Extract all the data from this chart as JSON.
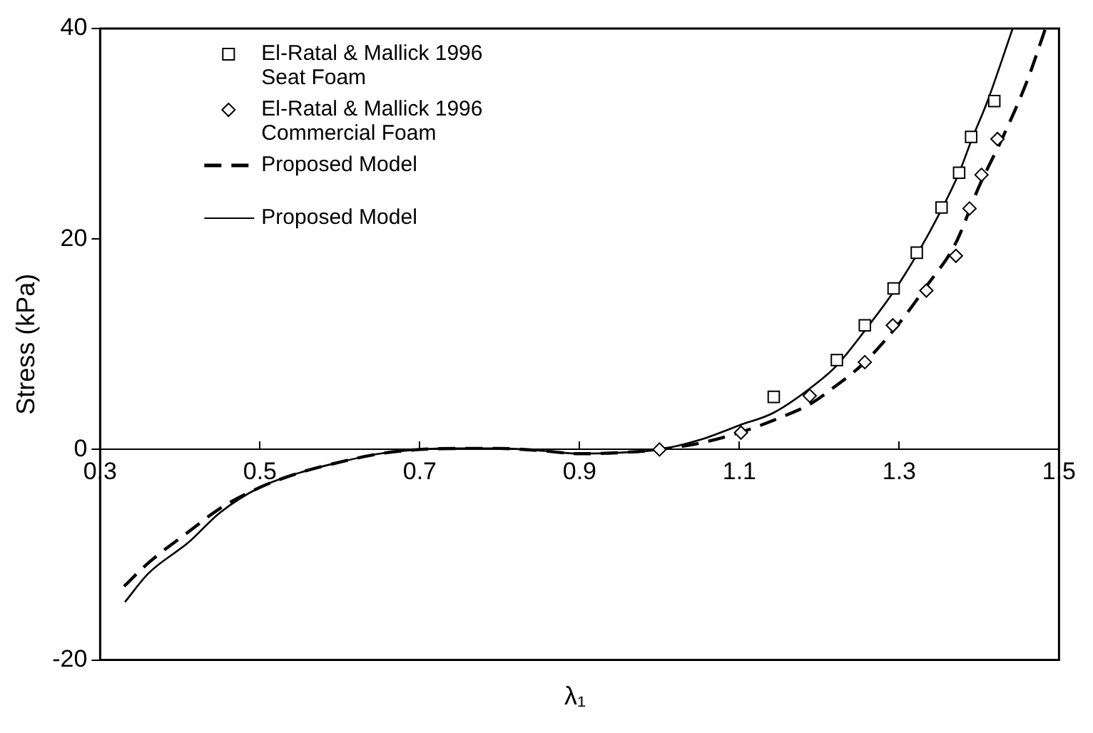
{
  "chart_data": {
    "type": "line",
    "xlabel": "λ₁",
    "ylabel": "Stress (kPa)",
    "xlim": [
      0.3,
      1.5
    ],
    "xticks": [
      0.3,
      0.5,
      0.7,
      0.9,
      1.1,
      1.3,
      1.5
    ],
    "ylim": [
      -20,
      40
    ],
    "yticks": [
      -20,
      0,
      20,
      40
    ],
    "grid": false,
    "legend": "top left",
    "series": [
      {
        "name": "El-Ratal & Mallick 1996 Seat Foam",
        "type": "scatter",
        "marker": "square",
        "color": "#000000",
        "x": [
          1.143,
          1.222,
          1.257,
          1.293,
          1.322,
          1.353,
          1.375,
          1.39,
          1.419
        ],
        "values": [
          5.0,
          8.5,
          11.8,
          15.3,
          18.7,
          23.0,
          26.3,
          29.7,
          33.1
        ]
      },
      {
        "name": "El-Ratal & Mallick 1996 Commercial Foam",
        "type": "scatter",
        "marker": "diamond",
        "color": "#000000",
        "x": [
          1.0,
          1.102,
          1.188,
          1.257,
          1.292,
          1.334,
          1.371,
          1.388,
          1.403,
          1.423
        ],
        "values": [
          0,
          1.6,
          5.1,
          8.3,
          11.8,
          15.1,
          18.4,
          22.9,
          26.1,
          29.5
        ]
      },
      {
        "name": "Proposed Model",
        "line_style": "dashed",
        "color": "#000000",
        "x": [
          0.33,
          0.36,
          0.411,
          0.45,
          0.5,
          0.55,
          0.6,
          0.65,
          0.7,
          0.75,
          0.8,
          0.85,
          0.9,
          0.95,
          1.0,
          1.05,
          1.1,
          1.15,
          1.188,
          1.22,
          1.257,
          1.3,
          1.334,
          1.37,
          1.4,
          1.431,
          1.46,
          1.483
        ],
        "values": [
          -13.0,
          -10.8,
          -7.8,
          -5.6,
          -3.6,
          -2.2,
          -1.2,
          -0.4,
          0,
          0.1,
          0.1,
          -0.1,
          -0.4,
          -0.3,
          0,
          0.6,
          1.6,
          3.0,
          4.3,
          6.0,
          8.3,
          12.0,
          15.5,
          19.5,
          25.0,
          29.9,
          35.0,
          40.0
        ]
      },
      {
        "name": "Proposed Model",
        "line_style": "solid",
        "color": "#000000",
        "x": [
          0.331,
          0.36,
          0.411,
          0.45,
          0.5,
          0.55,
          0.6,
          0.65,
          0.7,
          0.75,
          0.8,
          0.85,
          0.9,
          0.95,
          1.0,
          1.05,
          1.1,
          1.143,
          1.2,
          1.222,
          1.257,
          1.293,
          1.322,
          1.353,
          1.375,
          1.39,
          1.41,
          1.442
        ],
        "values": [
          -14.5,
          -11.8,
          -8.8,
          -6.0,
          -3.6,
          -2.2,
          -1.2,
          -0.4,
          0,
          0.1,
          0.1,
          -0.1,
          -0.4,
          -0.3,
          0,
          0.9,
          2.3,
          3.5,
          6.5,
          8.0,
          11.3,
          15.0,
          18.5,
          22.8,
          26.3,
          29.3,
          33.0,
          40.0
        ]
      }
    ]
  }
}
